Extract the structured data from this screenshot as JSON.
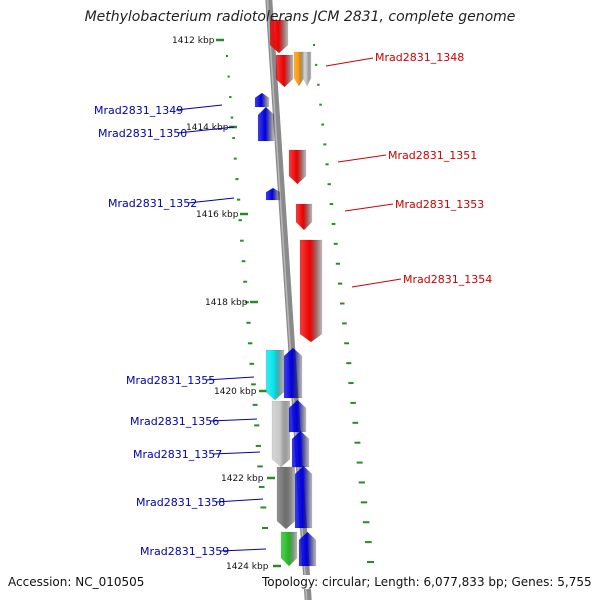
{
  "title": "Methylobacterium radiotolerans JCM 2831, complete genome",
  "footer": {
    "accession": "Accession: NC_010505",
    "topology": "Topology: circular; Length: 6,077,833 bp; Genes: 5,755"
  },
  "colors": {
    "forward": "#ee0000",
    "reverse": "#0000e0",
    "forward_label": "#cc0000",
    "reverse_label": "#0000aa",
    "backbone": "#8a8a8a",
    "gc_ticks": "#2a8a2a",
    "cyan": "#00e5ee",
    "orange": "#ff9a00",
    "lightgray": "#c8c8c8",
    "darkgray": "#6e6e6e",
    "green": "#22bb22"
  },
  "kbp_marks": [
    "1412 kbp",
    "1414 kbp",
    "1416 kbp",
    "1418 kbp",
    "1420 kbp",
    "1422 kbp",
    "1424 kbp"
  ],
  "gene_labels": [
    {
      "text": "Mrad2831_1348",
      "strand": "forward"
    },
    {
      "text": "Mrad2831_1349",
      "strand": "reverse"
    },
    {
      "text": "Mrad2831_1350",
      "strand": "reverse"
    },
    {
      "text": "Mrad2831_1351",
      "strand": "forward"
    },
    {
      "text": "Mrad2831_1352",
      "strand": "reverse"
    },
    {
      "text": "Mrad2831_1353",
      "strand": "forward"
    },
    {
      "text": "Mrad2831_1354",
      "strand": "forward"
    },
    {
      "text": "Mrad2831_1355",
      "strand": "reverse"
    },
    {
      "text": "Mrad2831_1356",
      "strand": "reverse"
    },
    {
      "text": "Mrad2831_1357",
      "strand": "reverse"
    },
    {
      "text": "Mrad2831_1358",
      "strand": "reverse"
    },
    {
      "text": "Mrad2831_1359",
      "strand": "reverse"
    }
  ]
}
